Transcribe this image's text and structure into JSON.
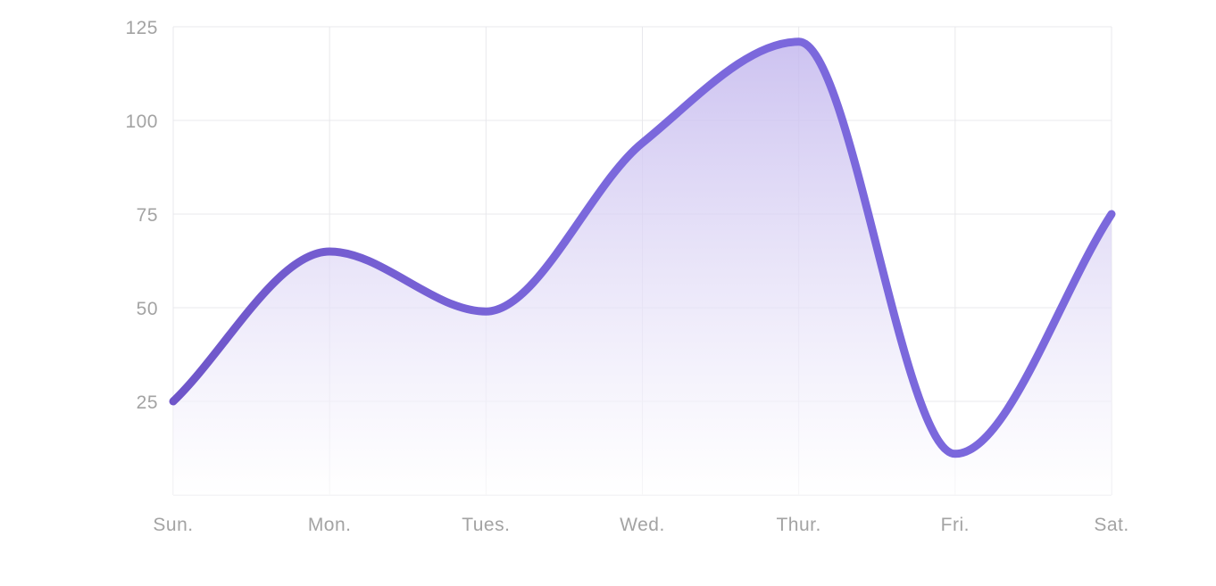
{
  "colors": {
    "line": "#7b68dc",
    "line_start": "#6f56c9",
    "fill_top": "#c4b8ee",
    "grid": "#e8e8ec",
    "tick_text": "#a3a3a3"
  },
  "chart_data": {
    "type": "area",
    "categories": [
      "Sun.",
      "Mon.",
      "Tues.",
      "Wed.",
      "Thur.",
      "Fri.",
      "Sat."
    ],
    "values": [
      25,
      65,
      49,
      94,
      121,
      11,
      75
    ],
    "title": "",
    "xlabel": "",
    "ylabel": "",
    "ylim": [
      0,
      125
    ],
    "yticks": [
      25,
      50,
      75,
      100,
      125
    ],
    "grid": true,
    "smooth": true,
    "legend": "none"
  }
}
